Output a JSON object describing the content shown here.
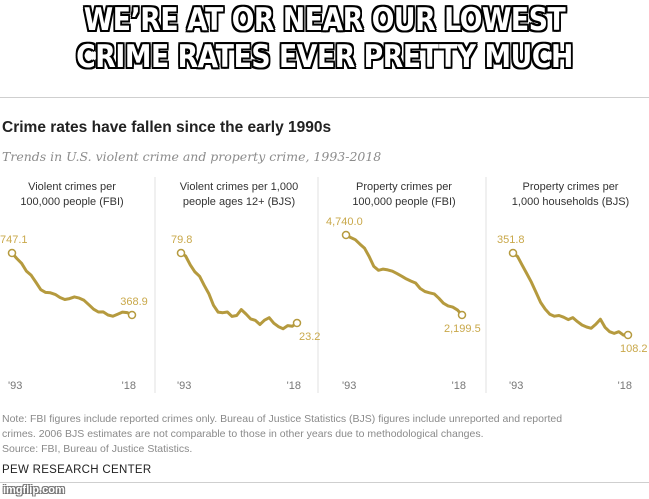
{
  "meme": {
    "line1": "WE’RE AT OR NEAR OUR LOWEST",
    "line2": "CRIME RATES EVER PRETTY MUCH"
  },
  "header": {
    "title": "Crime rates have fallen since the early 1990s",
    "subtitle": "Trends in U.S. violent crime and property crime, 1993-2018"
  },
  "colors": {
    "line": "#b59a3e",
    "label": "#c9a84a",
    "divider": "#e0e0e0",
    "axis": "#777777"
  },
  "chart_data": [
    {
      "type": "line",
      "title_lines": [
        "Violent crimes per",
        "100,000 people (FBI)"
      ],
      "x_ticks": [
        "'93",
        "'18"
      ],
      "start_label": "747.1",
      "end_label": "368.9",
      "ylim": [
        300,
        800
      ],
      "series": [
        {
          "values": [
            {
              "x": 1993,
              "y": 747.1
            },
            {
              "x": 1994,
              "y": 713.6
            },
            {
              "x": 1995,
              "y": 684.5
            },
            {
              "x": 1996,
              "y": 636.6
            },
            {
              "x": 1997,
              "y": 611.0
            },
            {
              "x": 1998,
              "y": 567.6
            },
            {
              "x": 1999,
              "y": 523.0
            },
            {
              "x": 2000,
              "y": 506.5
            },
            {
              "x": 2001,
              "y": 504.5
            },
            {
              "x": 2002,
              "y": 494.4
            },
            {
              "x": 2003,
              "y": 475.8
            },
            {
              "x": 2004,
              "y": 463.2
            },
            {
              "x": 2005,
              "y": 469.0
            },
            {
              "x": 2006,
              "y": 479.3
            },
            {
              "x": 2007,
              "y": 471.8
            },
            {
              "x": 2008,
              "y": 458.6
            },
            {
              "x": 2009,
              "y": 431.9
            },
            {
              "x": 2010,
              "y": 404.5
            },
            {
              "x": 2011,
              "y": 387.1
            },
            {
              "x": 2012,
              "y": 387.8
            },
            {
              "x": 2013,
              "y": 369.1
            },
            {
              "x": 2014,
              "y": 361.6
            },
            {
              "x": 2015,
              "y": 373.7
            },
            {
              "x": 2016,
              "y": 386.3
            },
            {
              "x": 2017,
              "y": 383.8
            },
            {
              "x": 2018,
              "y": 368.9
            }
          ]
        }
      ]
    },
    {
      "type": "line",
      "title_lines": [
        "Violent crimes per 1,000",
        "people ages 12+ (BJS)"
      ],
      "x_ticks": [
        "'93",
        "'18"
      ],
      "start_label": "79.8",
      "end_label": "23.2",
      "ylim": [
        10,
        85
      ],
      "series": [
        {
          "values": [
            {
              "x": 1993,
              "y": 79.8
            },
            {
              "x": 1994,
              "y": 77.4
            },
            {
              "x": 1995,
              "y": 70.2
            },
            {
              "x": 1996,
              "y": 64.5
            },
            {
              "x": 1997,
              "y": 61.0
            },
            {
              "x": 1998,
              "y": 53.7
            },
            {
              "x": 1999,
              "y": 47.0
            },
            {
              "x": 2000,
              "y": 37.5
            },
            {
              "x": 2001,
              "y": 32.0
            },
            {
              "x": 2002,
              "y": 31.5
            },
            {
              "x": 2003,
              "y": 32.1
            },
            {
              "x": 2004,
              "y": 28.5
            },
            {
              "x": 2005,
              "y": 29.3
            },
            {
              "x": 2006,
              "y": 34.0
            },
            {
              "x": 2007,
              "y": 30.5
            },
            {
              "x": 2008,
              "y": 26.5
            },
            {
              "x": 2009,
              "y": 25.4
            },
            {
              "x": 2010,
              "y": 22.0
            },
            {
              "x": 2011,
              "y": 25.5
            },
            {
              "x": 2012,
              "y": 27.5
            },
            {
              "x": 2013,
              "y": 23.0
            },
            {
              "x": 2014,
              "y": 20.3
            },
            {
              "x": 2015,
              "y": 18.6
            },
            {
              "x": 2016,
              "y": 21.1
            },
            {
              "x": 2017,
              "y": 20.6
            },
            {
              "x": 2018,
              "y": 23.2
            }
          ]
        }
      ]
    },
    {
      "type": "line",
      "title_lines": [
        "Property crimes per",
        "100,000 people (FBI)"
      ],
      "x_ticks": [
        "'93",
        "'18"
      ],
      "start_label": "4,740.0",
      "end_label": "2,199.5",
      "ylim": [
        1900,
        5100
      ],
      "series": [
        {
          "values": [
            {
              "x": 1993,
              "y": 4740.0
            },
            {
              "x": 1994,
              "y": 4660.2
            },
            {
              "x": 1995,
              "y": 4590.5
            },
            {
              "x": 1996,
              "y": 4451.0
            },
            {
              "x": 1997,
              "y": 4316.3
            },
            {
              "x": 1998,
              "y": 4052.5
            },
            {
              "x": 1999,
              "y": 3743.6
            },
            {
              "x": 2000,
              "y": 3618.3
            },
            {
              "x": 2001,
              "y": 3658.1
            },
            {
              "x": 2002,
              "y": 3630.6
            },
            {
              "x": 2003,
              "y": 3591.2
            },
            {
              "x": 2004,
              "y": 3514.1
            },
            {
              "x": 2005,
              "y": 3431.5
            },
            {
              "x": 2006,
              "y": 3346.6
            },
            {
              "x": 2007,
              "y": 3276.4
            },
            {
              "x": 2008,
              "y": 3214.6
            },
            {
              "x": 2009,
              "y": 3041.3
            },
            {
              "x": 2010,
              "y": 2945.9
            },
            {
              "x": 2011,
              "y": 2905.4
            },
            {
              "x": 2012,
              "y": 2868.0
            },
            {
              "x": 2013,
              "y": 2733.6
            },
            {
              "x": 2014,
              "y": 2574.1
            },
            {
              "x": 2015,
              "y": 2487.0
            },
            {
              "x": 2016,
              "y": 2450.7
            },
            {
              "x": 2017,
              "y": 2362.2
            },
            {
              "x": 2018,
              "y": 2199.5
            }
          ]
        }
      ]
    },
    {
      "type": "line",
      "title_lines": [
        "Property crimes per",
        "1,000 households (BJS)"
      ],
      "x_ticks": [
        "'93",
        "'18"
      ],
      "start_label": "351.8",
      "end_label": "108.2",
      "ylim": [
        60,
        380
      ],
      "series": [
        {
          "values": [
            {
              "x": 1993,
              "y": 351.8
            },
            {
              "x": 1994,
              "y": 341.2
            },
            {
              "x": 1995,
              "y": 315.5
            },
            {
              "x": 1996,
              "y": 290.6
            },
            {
              "x": 1997,
              "y": 265.0
            },
            {
              "x": 1998,
              "y": 235.0
            },
            {
              "x": 1999,
              "y": 205.0
            },
            {
              "x": 2000,
              "y": 185.0
            },
            {
              "x": 2001,
              "y": 170.0
            },
            {
              "x": 2002,
              "y": 164.0
            },
            {
              "x": 2003,
              "y": 166.0
            },
            {
              "x": 2004,
              "y": 161.1
            },
            {
              "x": 2005,
              "y": 154.0
            },
            {
              "x": 2006,
              "y": 160.0
            },
            {
              "x": 2007,
              "y": 148.0
            },
            {
              "x": 2008,
              "y": 138.0
            },
            {
              "x": 2009,
              "y": 132.0
            },
            {
              "x": 2010,
              "y": 128.0
            },
            {
              "x": 2011,
              "y": 140.0
            },
            {
              "x": 2012,
              "y": 155.0
            },
            {
              "x": 2013,
              "y": 131.0
            },
            {
              "x": 2014,
              "y": 118.0
            },
            {
              "x": 2015,
              "y": 113.0
            },
            {
              "x": 2016,
              "y": 118.0
            },
            {
              "x": 2017,
              "y": 108.0
            },
            {
              "x": 2018,
              "y": 108.2
            }
          ]
        }
      ]
    }
  ],
  "notes": {
    "line1": "Note: FBI figures include reported crimes only. Bureau of Justice Statistics (BJS) figures include unreported and reported",
    "line2": "crimes. 2006 BJS estimates are not comparable to those in other years due to methodological changes.",
    "line3": "Source: FBI, Bureau of Justice Statistics.",
    "org": "PEW RESEARCH CENTER"
  },
  "watermark": "imgflip.com"
}
